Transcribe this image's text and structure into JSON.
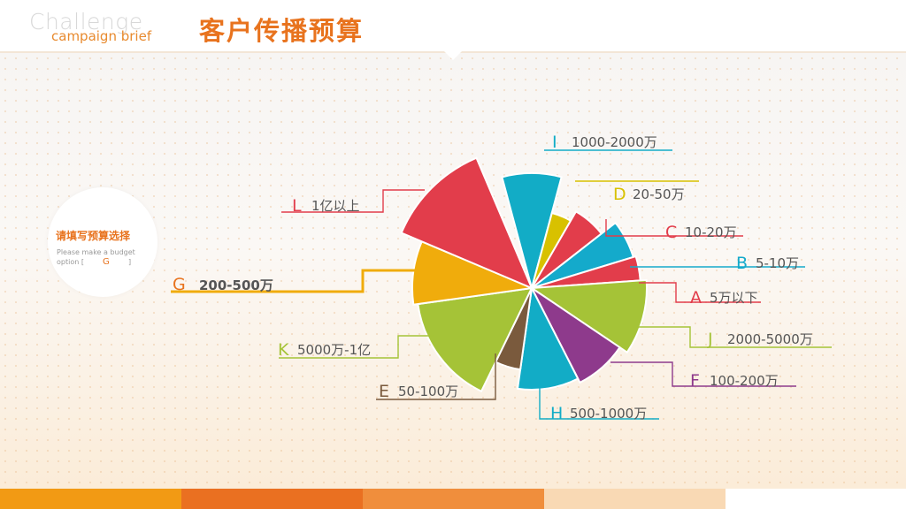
{
  "header": {
    "brand_main": "Challenge",
    "brand_sub": "campaign brief",
    "title": "客户传播预算"
  },
  "prompt": {
    "title": "请填写预算选择",
    "text": "Please make a budget option [",
    "answer": "G",
    "bracket_close": "]"
  },
  "footer": {
    "bar_colors": [
      "#f29a14",
      "#ea7021",
      "#f08e3c",
      "#f9d9b4"
    ]
  },
  "chart_data": {
    "type": "pie",
    "style": "polar-area",
    "slices": [
      {
        "letter": "I",
        "label": "1000-2000万",
        "color": "#12acc6",
        "start": -15,
        "end": 15,
        "r": 130
      },
      {
        "letter": "D",
        "label": "20-50万",
        "color": "#d8c100",
        "start": 15,
        "end": 30,
        "r": 88
      },
      {
        "letter": "C",
        "label": "10-20万",
        "color": "#e23d4b",
        "start": 30,
        "end": 52,
        "r": 100
      },
      {
        "letter": "B",
        "label": "5-10万",
        "color": "#14aacb",
        "start": 52,
        "end": 73,
        "r": 120
      },
      {
        "letter": "A",
        "label": "5万以下",
        "color": "#e23d4b",
        "start": 73,
        "end": 86,
        "r": 123
      },
      {
        "letter": "J",
        "label": "2000-5000万",
        "color": "#a5c337",
        "start": 86,
        "end": 124,
        "r": 130
      },
      {
        "letter": "F",
        "label": "100-200万",
        "color": "#8e3a8c",
        "start": 124,
        "end": 153,
        "r": 120
      },
      {
        "letter": "H",
        "label": "500-1000万",
        "color": "#12acc6",
        "start": 153,
        "end": 188,
        "r": 115
      },
      {
        "letter": "E",
        "label": "50-100万",
        "color": "#7a5a3d",
        "start": 188,
        "end": 206,
        "r": 93
      },
      {
        "letter": "K",
        "label": "5000万-1亿",
        "color": "#a5c337",
        "start": 206,
        "end": 262,
        "r": 130
      },
      {
        "letter": "G",
        "label": "200-500万",
        "color": "#f0ac0c",
        "start": 262,
        "end": 293,
        "r": 135,
        "highlight": true
      },
      {
        "letter": "L",
        "label": "1亿以上",
        "color": "#e23d4b",
        "start": 293,
        "end": 337,
        "r": 160
      }
    ]
  }
}
